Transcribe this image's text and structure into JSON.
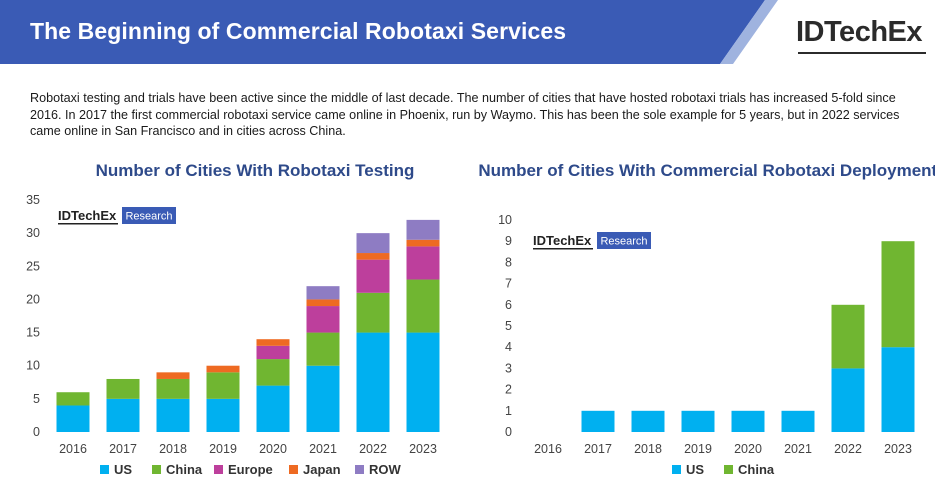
{
  "header": {
    "title": "The Beginning of Commercial Robotaxi Services",
    "brand": "IDTechEx",
    "banner_color": "#3a5bb5"
  },
  "intro_text": "Robotaxi testing and trials have been active since the middle of last decade. The number of cities that have hosted robotaxi trials has increased 5-fold since 2016. In 2017 the first commercial robotaxi service came online in Phoenix, run by Waymo. This has been the sole example for 5 years, but in 2022 services came online in San Francisco and in cities across China.",
  "watermark": {
    "brand": "IDTechEx",
    "tag": "Research"
  },
  "chart_data": [
    {
      "type": "bar",
      "stacked": true,
      "title": "Number of Cities With Robotaxi Testing",
      "categories": [
        "2016",
        "2017",
        "2018",
        "2019",
        "2020",
        "2021",
        "2022",
        "2023"
      ],
      "ylim": [
        0,
        35
      ],
      "yticks": [
        "0",
        "5",
        "10",
        "15",
        "20",
        "25",
        "30",
        "35"
      ],
      "grid": false,
      "legend": "bottom",
      "series": [
        {
          "name": "US",
          "color": "#00b0f0",
          "values": [
            4,
            5,
            5,
            5,
            7,
            10,
            15,
            15
          ]
        },
        {
          "name": "China",
          "color": "#70b631",
          "values": [
            2,
            3,
            3,
            4,
            4,
            5,
            6,
            8
          ]
        },
        {
          "name": "Europe",
          "color": "#bd3f9c",
          "values": [
            0,
            0,
            0,
            0,
            2,
            4,
            5,
            5
          ]
        },
        {
          "name": "Japan",
          "color": "#ee6a22",
          "values": [
            0,
            0,
            1,
            1,
            1,
            1,
            1,
            1
          ]
        },
        {
          "name": "ROW",
          "color": "#8e7cc3",
          "values": [
            0,
            0,
            0,
            0,
            0,
            2,
            3,
            3
          ]
        }
      ]
    },
    {
      "type": "bar",
      "stacked": true,
      "title": "Number of Cities With Commercial Robotaxi Deployments",
      "categories": [
        "2016",
        "2017",
        "2018",
        "2019",
        "2020",
        "2021",
        "2022",
        "2023"
      ],
      "ylim": [
        0,
        10
      ],
      "yticks": [
        "0",
        "1",
        "2",
        "3",
        "4",
        "5",
        "6",
        "7",
        "8",
        "9",
        "10"
      ],
      "grid": false,
      "legend": "bottom",
      "series": [
        {
          "name": "US",
          "color": "#00b0f0",
          "values": [
            0,
            1,
            1,
            1,
            1,
            1,
            3,
            4
          ]
        },
        {
          "name": "China",
          "color": "#70b631",
          "values": [
            0,
            0,
            0,
            0,
            0,
            0,
            3,
            5
          ]
        }
      ]
    }
  ]
}
